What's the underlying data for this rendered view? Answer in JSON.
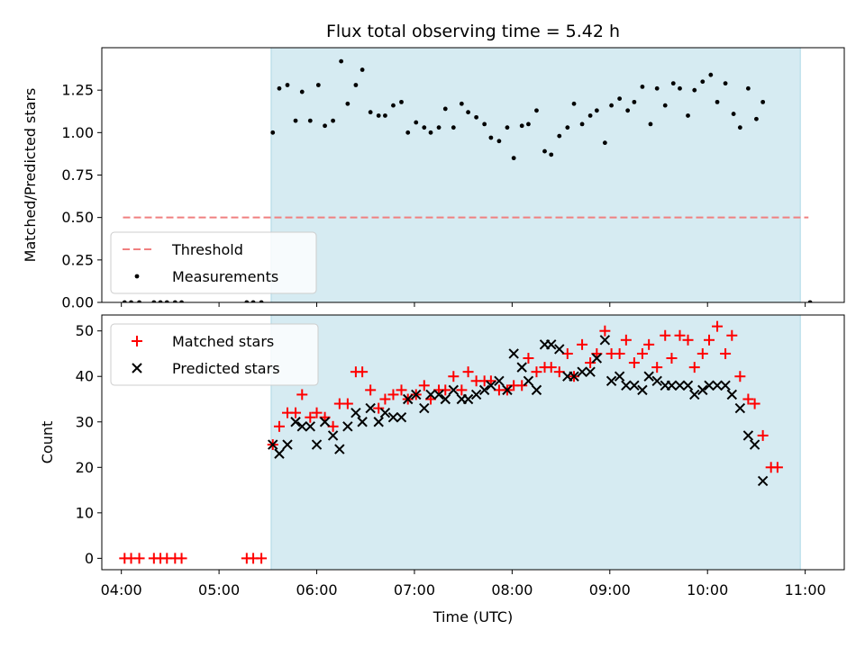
{
  "chart_data": [
    {
      "type": "scatter",
      "title": "Flux total observing time = 5.42 h",
      "xlabel": "",
      "ylabel": "Matched/Predicted stars",
      "xlim": [
        "03:48",
        "11:24"
      ],
      "ylim": [
        0,
        1.5
      ],
      "yticks": [
        "0.00",
        "0.25",
        "0.50",
        "0.75",
        "1.00",
        "1.25"
      ],
      "shaded_region": [
        "05:32",
        "10:57"
      ],
      "threshold": {
        "name": "Threshold",
        "value": 0.5,
        "x_range": [
          "04:01",
          "11:02"
        ],
        "color": "#f08080"
      },
      "legend": {
        "placement": "lower-left",
        "entries": [
          "Threshold",
          "Measurements"
        ]
      },
      "series": [
        {
          "name": "Measurements",
          "color": "#000000",
          "points": [
            [
              "04:02",
              0
            ],
            [
              "04:06",
              0
            ],
            [
              "04:11",
              0
            ],
            [
              "04:20",
              0
            ],
            [
              "04:24",
              0
            ],
            [
              "04:28",
              0
            ],
            [
              "04:33",
              0
            ],
            [
              "04:37",
              0
            ],
            [
              "05:17",
              0
            ],
            [
              "05:21",
              0
            ],
            [
              "05:26",
              0
            ],
            [
              "05:33",
              1.0
            ],
            [
              "05:37",
              1.26
            ],
            [
              "05:42",
              1.28
            ],
            [
              "05:47",
              1.07
            ],
            [
              "05:51",
              1.24
            ],
            [
              "05:56",
              1.07
            ],
            [
              "06:01",
              1.28
            ],
            [
              "06:05",
              1.04
            ],
            [
              "06:10",
              1.07
            ],
            [
              "06:15",
              1.42
            ],
            [
              "06:19",
              1.17
            ],
            [
              "06:24",
              1.28
            ],
            [
              "06:28",
              1.37
            ],
            [
              "06:33",
              1.12
            ],
            [
              "06:38",
              1.1
            ],
            [
              "06:42",
              1.1
            ],
            [
              "06:47",
              1.16
            ],
            [
              "06:52",
              1.18
            ],
            [
              "06:56",
              1.0
            ],
            [
              "07:01",
              1.06
            ],
            [
              "07:06",
              1.03
            ],
            [
              "07:10",
              1.0
            ],
            [
              "07:15",
              1.03
            ],
            [
              "07:19",
              1.14
            ],
            [
              "07:24",
              1.03
            ],
            [
              "07:29",
              1.17
            ],
            [
              "07:33",
              1.12
            ],
            [
              "07:38",
              1.09
            ],
            [
              "07:43",
              1.05
            ],
            [
              "07:47",
              0.97
            ],
            [
              "07:52",
              0.95
            ],
            [
              "07:57",
              1.03
            ],
            [
              "08:01",
              0.85
            ],
            [
              "08:06",
              1.04
            ],
            [
              "08:10",
              1.05
            ],
            [
              "08:15",
              1.13
            ],
            [
              "08:20",
              0.89
            ],
            [
              "08:24",
              0.87
            ],
            [
              "08:29",
              0.98
            ],
            [
              "08:34",
              1.03
            ],
            [
              "08:38",
              1.17
            ],
            [
              "08:43",
              1.05
            ],
            [
              "08:48",
              1.1
            ],
            [
              "08:52",
              1.13
            ],
            [
              "08:57",
              0.94
            ],
            [
              "09:01",
              1.16
            ],
            [
              "09:06",
              1.2
            ],
            [
              "09:11",
              1.13
            ],
            [
              "09:15",
              1.18
            ],
            [
              "09:20",
              1.27
            ],
            [
              "09:25",
              1.05
            ],
            [
              "09:29",
              1.26
            ],
            [
              "09:34",
              1.16
            ],
            [
              "09:39",
              1.29
            ],
            [
              "09:43",
              1.26
            ],
            [
              "09:48",
              1.1
            ],
            [
              "09:52",
              1.25
            ],
            [
              "09:57",
              1.3
            ],
            [
              "10:02",
              1.34
            ],
            [
              "10:06",
              1.18
            ],
            [
              "10:11",
              1.29
            ],
            [
              "10:16",
              1.11
            ],
            [
              "10:20",
              1.03
            ],
            [
              "10:25",
              1.26
            ],
            [
              "10:30",
              1.08
            ],
            [
              "10:34",
              1.18
            ],
            [
              "11:03",
              0
            ]
          ]
        }
      ]
    },
    {
      "type": "scatter",
      "title": "",
      "xlabel": "Time (UTC)",
      "ylabel": "Count",
      "xlim": [
        "03:48",
        "11:24"
      ],
      "ylim": [
        -2.5,
        53.5
      ],
      "yticks": [
        "0",
        "10",
        "20",
        "30",
        "40",
        "50"
      ],
      "xticks": [
        "04:00",
        "05:00",
        "06:00",
        "07:00",
        "08:00",
        "09:00",
        "10:00",
        "11:00"
      ],
      "shaded_region": [
        "05:32",
        "10:57"
      ],
      "legend": {
        "placement": "top-left",
        "entries": [
          "Matched stars",
          "Predicted stars"
        ]
      },
      "series": [
        {
          "name": "Matched stars",
          "color": "#ff0000",
          "marker": "+",
          "points": [
            [
              "04:02",
              0
            ],
            [
              "04:06",
              0
            ],
            [
              "04:11",
              0
            ],
            [
              "04:20",
              0
            ],
            [
              "04:24",
              0
            ],
            [
              "04:28",
              0
            ],
            [
              "04:33",
              0
            ],
            [
              "04:37",
              0
            ],
            [
              "05:17",
              0
            ],
            [
              "05:21",
              0
            ],
            [
              "05:26",
              0
            ],
            [
              "05:33",
              25
            ],
            [
              "05:37",
              29
            ],
            [
              "05:42",
              32
            ],
            [
              "05:47",
              32
            ],
            [
              "05:51",
              36
            ],
            [
              "05:56",
              31
            ],
            [
              "06:00",
              32
            ],
            [
              "06:05",
              31
            ],
            [
              "06:10",
              29
            ],
            [
              "06:14",
              34
            ],
            [
              "06:19",
              34
            ],
            [
              "06:24",
              41
            ],
            [
              "06:28",
              41
            ],
            [
              "06:33",
              37
            ],
            [
              "06:38",
              33
            ],
            [
              "06:42",
              35
            ],
            [
              "06:47",
              36
            ],
            [
              "06:52",
              37
            ],
            [
              "06:56",
              35
            ],
            [
              "07:01",
              36
            ],
            [
              "07:06",
              38
            ],
            [
              "07:10",
              35
            ],
            [
              "07:15",
              37
            ],
            [
              "07:19",
              37
            ],
            [
              "07:24",
              40
            ],
            [
              "07:29",
              37
            ],
            [
              "07:33",
              41
            ],
            [
              "07:38",
              39
            ],
            [
              "07:43",
              39
            ],
            [
              "07:47",
              39
            ],
            [
              "07:52",
              37
            ],
            [
              "07:57",
              37
            ],
            [
              "08:01",
              38
            ],
            [
              "08:06",
              38
            ],
            [
              "08:10",
              44
            ],
            [
              "08:15",
              41
            ],
            [
              "08:20",
              42
            ],
            [
              "08:24",
              42
            ],
            [
              "08:29",
              41
            ],
            [
              "08:34",
              45
            ],
            [
              "08:38",
              40
            ],
            [
              "08:43",
              47
            ],
            [
              "08:48",
              43
            ],
            [
              "08:52",
              45
            ],
            [
              "08:57",
              50
            ],
            [
              "09:01",
              45
            ],
            [
              "09:06",
              45
            ],
            [
              "09:10",
              48
            ],
            [
              "09:15",
              43
            ],
            [
              "09:20",
              45
            ],
            [
              "09:24",
              47
            ],
            [
              "09:29",
              42
            ],
            [
              "09:34",
              49
            ],
            [
              "09:38",
              44
            ],
            [
              "09:43",
              49
            ],
            [
              "09:48",
              48
            ],
            [
              "09:52",
              42
            ],
            [
              "09:57",
              45
            ],
            [
              "10:01",
              48
            ],
            [
              "10:06",
              51
            ],
            [
              "10:11",
              45
            ],
            [
              "10:15",
              49
            ],
            [
              "10:20",
              40
            ],
            [
              "10:25",
              35
            ],
            [
              "10:29",
              34
            ],
            [
              "10:34",
              27
            ],
            [
              "10:39",
              20
            ],
            [
              "10:43",
              20
            ]
          ]
        },
        {
          "name": "Predicted stars",
          "color": "#000000",
          "marker": "x",
          "points": [
            [
              "05:33",
              25
            ],
            [
              "05:37",
              23
            ],
            [
              "05:42",
              25
            ],
            [
              "05:47",
              30
            ],
            [
              "05:51",
              29
            ],
            [
              "05:56",
              29
            ],
            [
              "06:00",
              25
            ],
            [
              "06:05",
              30
            ],
            [
              "06:10",
              27
            ],
            [
              "06:14",
              24
            ],
            [
              "06:19",
              29
            ],
            [
              "06:24",
              32
            ],
            [
              "06:28",
              30
            ],
            [
              "06:33",
              33
            ],
            [
              "06:38",
              30
            ],
            [
              "06:42",
              32
            ],
            [
              "06:47",
              31
            ],
            [
              "06:52",
              31
            ],
            [
              "06:56",
              35
            ],
            [
              "07:01",
              36
            ],
            [
              "07:06",
              33
            ],
            [
              "07:10",
              36
            ],
            [
              "07:15",
              36
            ],
            [
              "07:19",
              35
            ],
            [
              "07:24",
              37
            ],
            [
              "07:29",
              35
            ],
            [
              "07:33",
              35
            ],
            [
              "07:38",
              36
            ],
            [
              "07:43",
              37
            ],
            [
              "07:47",
              38
            ],
            [
              "07:52",
              39
            ],
            [
              "07:57",
              37
            ],
            [
              "08:01",
              45
            ],
            [
              "08:06",
              42
            ],
            [
              "08:10",
              39
            ],
            [
              "08:15",
              37
            ],
            [
              "08:20",
              47
            ],
            [
              "08:24",
              47
            ],
            [
              "08:29",
              46
            ],
            [
              "08:34",
              40
            ],
            [
              "08:38",
              40
            ],
            [
              "08:43",
              41
            ],
            [
              "08:48",
              41
            ],
            [
              "08:52",
              44
            ],
            [
              "08:57",
              48
            ],
            [
              "09:01",
              39
            ],
            [
              "09:06",
              40
            ],
            [
              "09:10",
              38
            ],
            [
              "09:15",
              38
            ],
            [
              "09:20",
              37
            ],
            [
              "09:24",
              40
            ],
            [
              "09:29",
              39
            ],
            [
              "09:34",
              38
            ],
            [
              "09:38",
              38
            ],
            [
              "09:43",
              38
            ],
            [
              "09:48",
              38
            ],
            [
              "09:52",
              36
            ],
            [
              "09:57",
              37
            ],
            [
              "10:01",
              38
            ],
            [
              "10:06",
              38
            ],
            [
              "10:11",
              38
            ],
            [
              "10:15",
              36
            ],
            [
              "10:20",
              33
            ],
            [
              "10:25",
              27
            ],
            [
              "10:29",
              25
            ],
            [
              "10:34",
              17
            ]
          ]
        }
      ]
    }
  ]
}
